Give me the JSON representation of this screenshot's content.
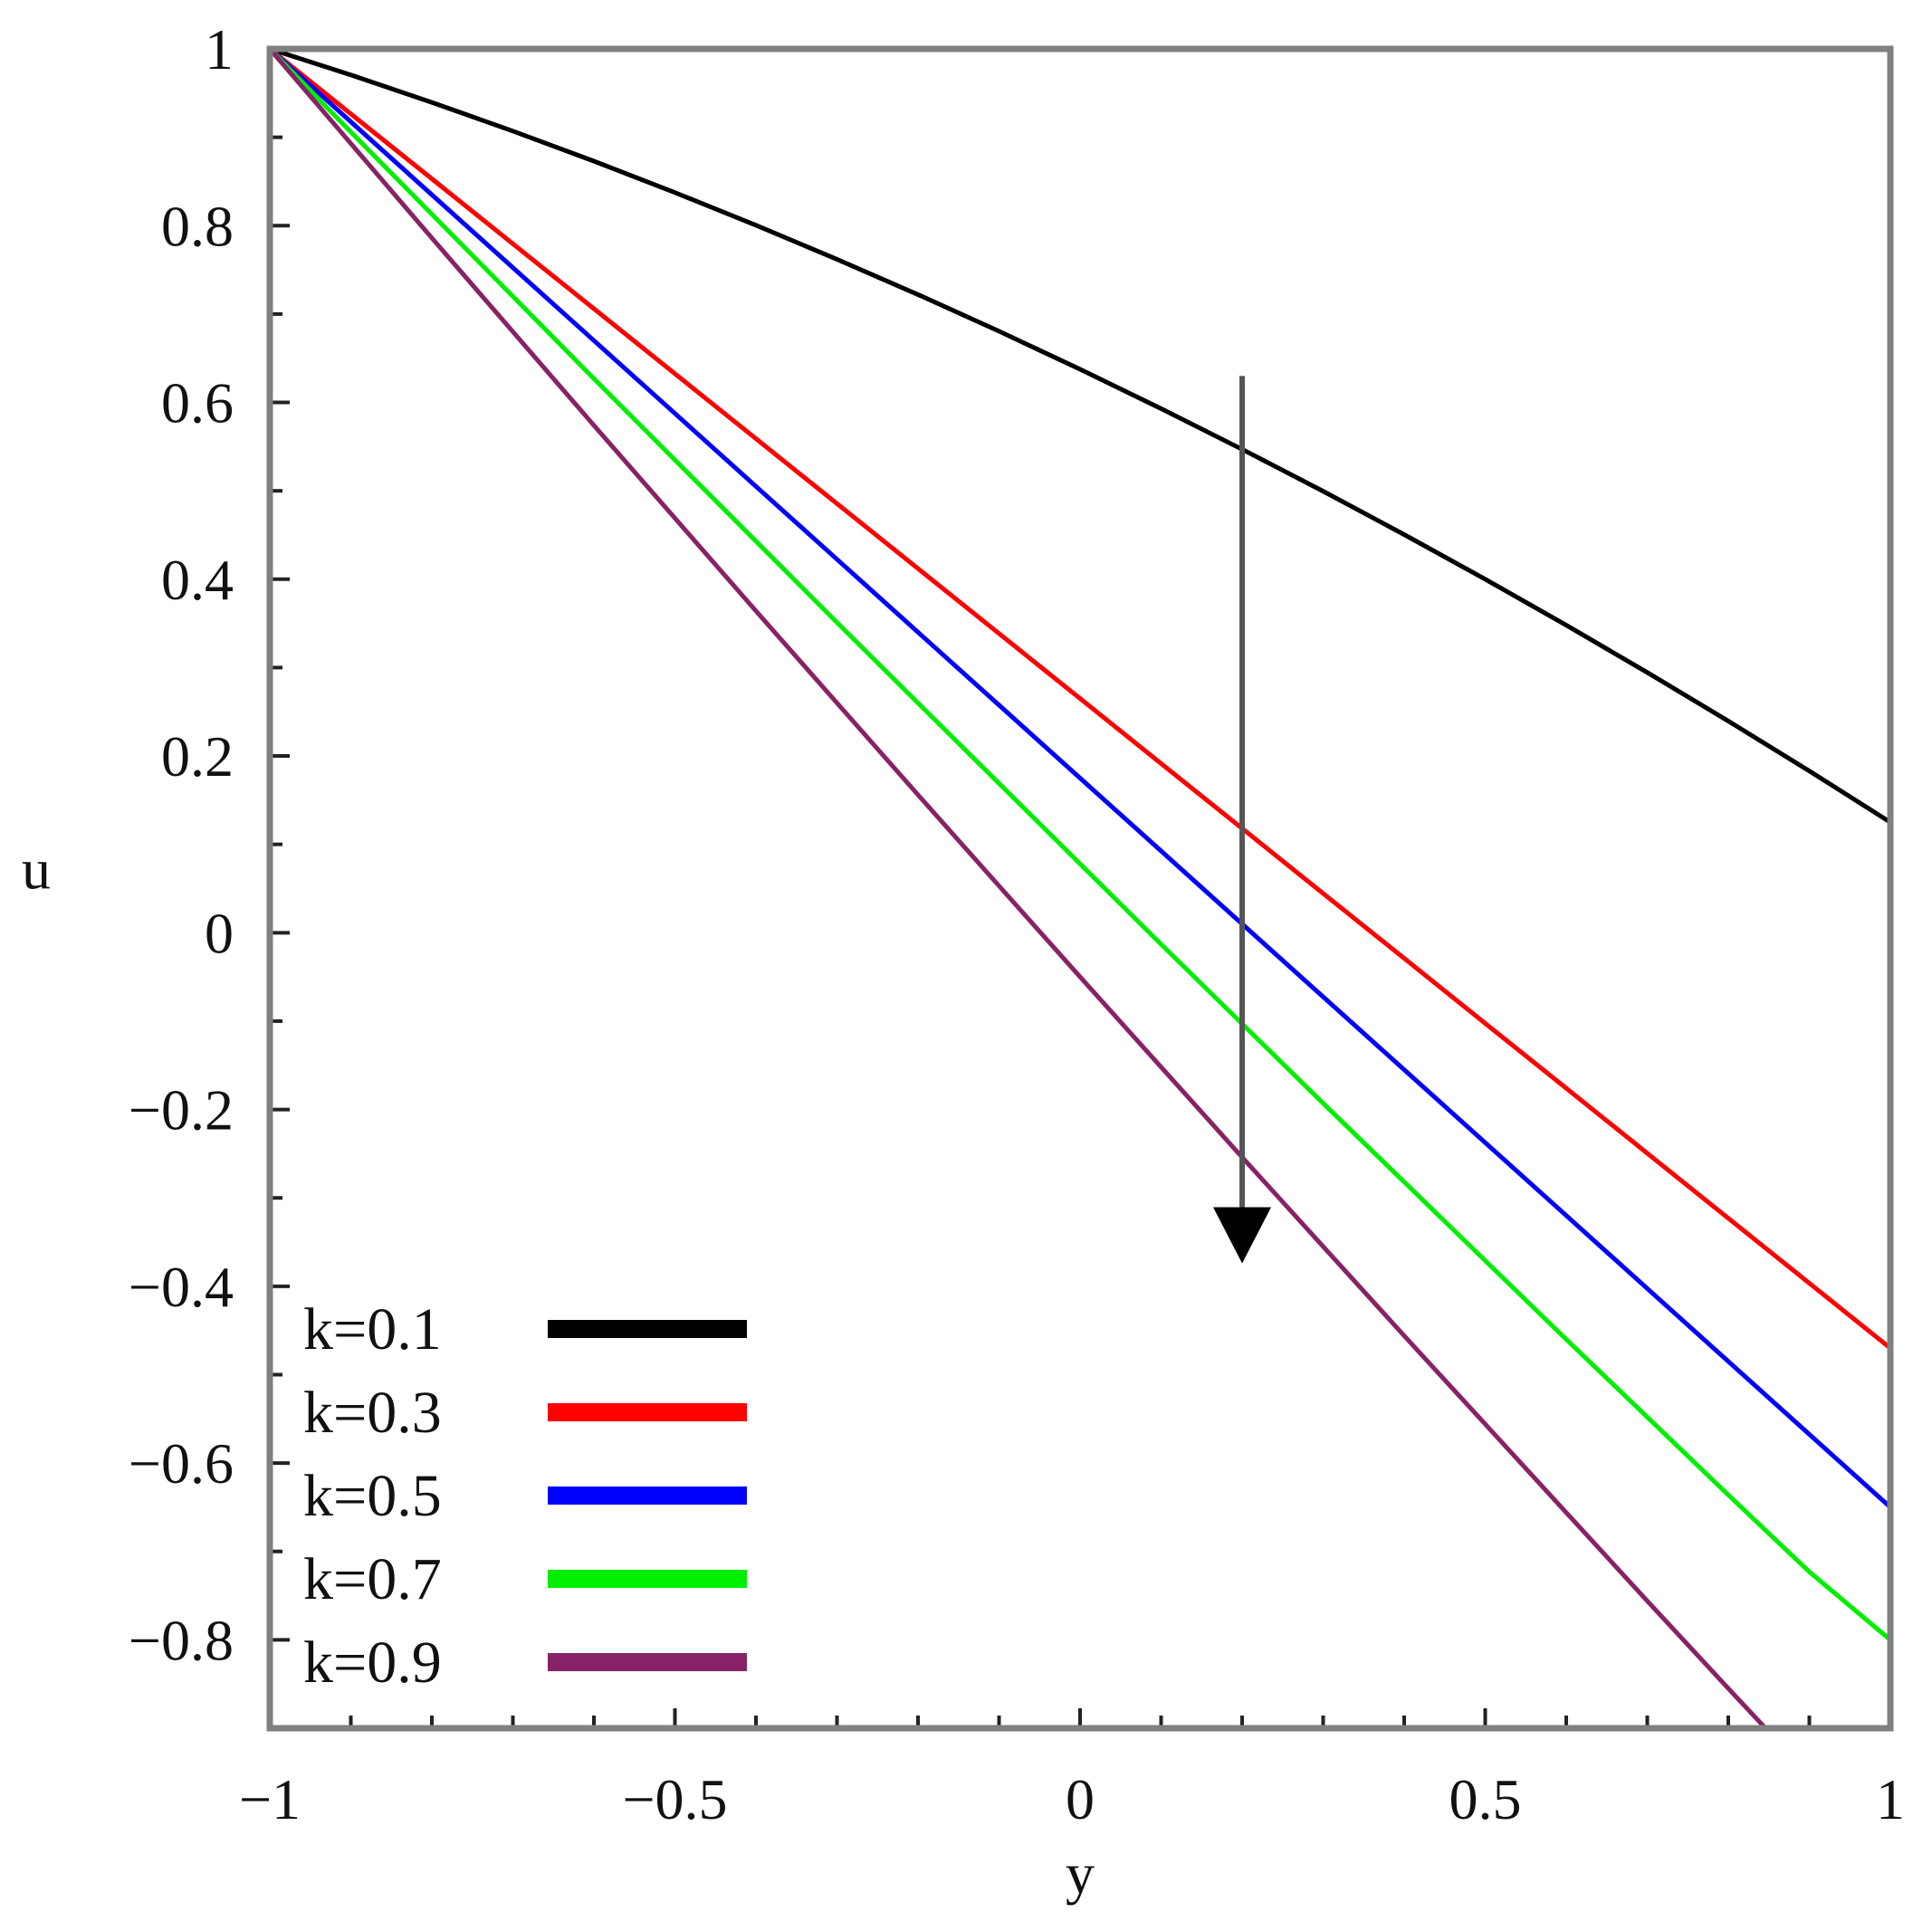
{
  "chart_data": {
    "type": "line",
    "title": "",
    "xlabel": "y",
    "ylabel": "u",
    "xlim": [
      -1,
      1
    ],
    "ylim": [
      -0.9,
      1.0
    ],
    "grid": false,
    "legend_position": "bottom-left",
    "x_ticks": [
      {
        "value": -1,
        "label": "−1"
      },
      {
        "value": -0.5,
        "label": "−0.5"
      },
      {
        "value": 0,
        "label": "0"
      },
      {
        "value": 0.5,
        "label": "0.5"
      },
      {
        "value": 1,
        "label": "1"
      }
    ],
    "y_ticks": [
      {
        "value": 1,
        "label": "1"
      },
      {
        "value": 0.8,
        "label": "0.8"
      },
      {
        "value": 0.6,
        "label": "0.6"
      },
      {
        "value": 0.4,
        "label": "0.4"
      },
      {
        "value": 0.2,
        "label": "0.2"
      },
      {
        "value": 0,
        "label": "0"
      },
      {
        "value": -0.2,
        "label": "−0.2"
      },
      {
        "value": -0.4,
        "label": "−0.4"
      },
      {
        "value": -0.6,
        "label": "−0.6"
      },
      {
        "value": -0.8,
        "label": "−0.8"
      }
    ],
    "x": [
      -1.0,
      -0.9,
      -0.8,
      -0.7,
      -0.6,
      -0.5,
      -0.4,
      -0.3,
      -0.2,
      -0.1,
      0.0,
      0.1,
      0.2,
      0.3,
      0.4,
      0.5,
      0.6,
      0.7,
      0.8,
      0.9,
      1.0
    ],
    "series": [
      {
        "name": "k=0.1",
        "color": "#000000",
        "values": [
          1.0,
          0.9705,
          0.9395,
          0.907,
          0.873,
          0.8375,
          0.8005,
          0.762,
          0.722,
          0.6805,
          0.6375,
          0.593,
          0.547,
          0.4995,
          0.4505,
          0.4,
          0.348,
          0.2945,
          0.2395,
          0.183,
          0.125
        ]
      },
      {
        "name": "k=0.3",
        "color": "#ff0000",
        "values": [
          1.0,
          0.9265,
          0.853,
          0.7795,
          0.706,
          0.6325,
          0.559,
          0.4855,
          0.412,
          0.3385,
          0.265,
          0.1915,
          0.118,
          0.0445,
          -0.029,
          -0.1025,
          -0.176,
          -0.2495,
          -0.323,
          -0.3965,
          -0.47
        ]
      },
      {
        "name": "k=0.5",
        "color": "#0000ff",
        "values": [
          1.0,
          0.9175,
          0.835,
          0.7525,
          0.67,
          0.5875,
          0.505,
          0.4225,
          0.34,
          0.2575,
          0.175,
          0.0925,
          0.01,
          -0.0725,
          -0.155,
          -0.2375,
          -0.32,
          -0.4025,
          -0.485,
          -0.5675,
          -0.65
        ]
      },
      {
        "name": "k=0.7",
        "color": "#00ee00",
        "values": [
          1.0,
          0.906,
          0.813,
          0.72,
          0.627,
          0.535,
          0.443,
          0.351,
          0.26,
          0.169,
          0.078,
          -0.013,
          -0.103,
          -0.193,
          -0.282,
          -0.371,
          -0.46,
          -0.548,
          -0.636,
          -0.723,
          -0.8
        ]
      },
      {
        "name": "k=0.9",
        "color": "#882266",
        "values": [
          1.0,
          0.893,
          0.786,
          0.68,
          0.574,
          0.469,
          0.364,
          0.26,
          0.156,
          0.053,
          -0.05,
          -0.152,
          -0.254,
          -0.355,
          -0.456,
          -0.556,
          -0.656,
          -0.756,
          -0.855,
          -0.953,
          -1.05
        ]
      }
    ],
    "annotations": [
      {
        "type": "arrow",
        "x": 0.2,
        "y_start": 0.63,
        "y_end": -0.37,
        "color": "#222222"
      }
    ]
  }
}
